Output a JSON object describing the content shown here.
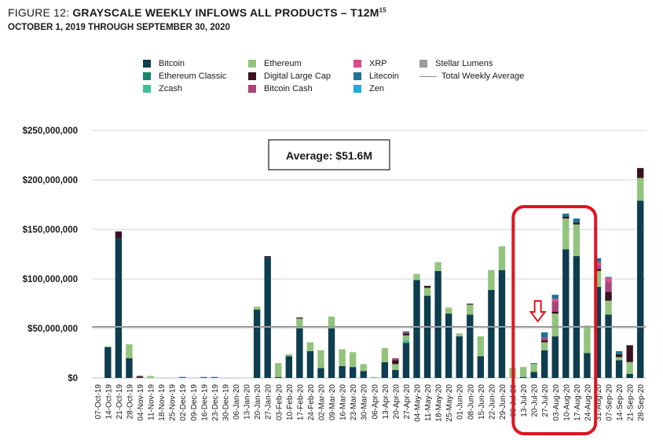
{
  "header": {
    "figure_label": "FIGURE 12:",
    "title": "GRAYSCALE WEEKLY INFLOWS ALL PRODUCTS – T12M",
    "title_sup": "15",
    "subtitle": "OCTOBER 1, 2019 THROUGH SEPTEMBER 30, 2020"
  },
  "legend": [
    {
      "name": "Bitcoin",
      "color": "#0d3d4f"
    },
    {
      "name": "Ethereum Classic",
      "color": "#14836e"
    },
    {
      "name": "Zcash",
      "color": "#3dbd97"
    },
    {
      "name": "Ethereum",
      "color": "#93c47d"
    },
    {
      "name": "Digital Large Cap",
      "color": "#3b1121"
    },
    {
      "name": "Bitcoin Cash",
      "color": "#a8457d"
    },
    {
      "name": "XRP",
      "color": "#dd4a8c"
    },
    {
      "name": "Litecoin",
      "color": "#1d7396"
    },
    {
      "name": "Zen",
      "color": "#1faed6"
    },
    {
      "name": "Stellar Lumens",
      "color": "#9b9b9b"
    },
    {
      "name": "Total Weekly Average",
      "color": "#9b9b9b"
    }
  ],
  "average_label": "Average: $51.6M",
  "chart_data": {
    "type": "bar",
    "stacked": true,
    "title": "GRAYSCALE WEEKLY INFLOWS ALL PRODUCTS – T12M",
    "ylim": [
      0,
      250000000
    ],
    "yticks": [
      0,
      50000000,
      100000000,
      150000000,
      200000000,
      250000000
    ],
    "ytick_labels": [
      "$0",
      "$50,000,000",
      "$100,000,000",
      "$150,000,000",
      "$200,000,000",
      "$250,000,000"
    ],
    "average": 51600000,
    "average_label": "Average: $51.6M",
    "categories": [
      "07-Oct-19",
      "14-Oct-19",
      "21-Oct-19",
      "28-Oct-19",
      "04-Nov-19",
      "11-Nov-19",
      "18-Nov-19",
      "25-Nov-19",
      "02-Dec-19",
      "09-Dec-19",
      "16-Dec-19",
      "23-Dec-19",
      "30-Dec-19",
      "06-Jan-20",
      "13-Jan-20",
      "20-Jan-20",
      "27-Jan-20",
      "03-Feb-20",
      "10-Feb-20",
      "17-Feb-20",
      "24-Feb-20",
      "02-Mar-20",
      "09-Mar-20",
      "16-Mar-20",
      "23-Mar-20",
      "30-Mar-20",
      "06-Apr-20",
      "13-Apr-20",
      "20-Apr-20",
      "27-Apr-20",
      "04-May-20",
      "11-May-20",
      "18-May-20",
      "25-May-20",
      "01-Jun-20",
      "08-Jun-20",
      "15-Jun-20",
      "22-Jun-20",
      "29-Jun-20",
      "06-Jul-20",
      "13-Jul-20",
      "20-Jul-20",
      "27-Jul-20",
      "03-Aug-20",
      "10-Aug-20",
      "17-Aug-20",
      "24-Aug-20",
      "31-Aug-20",
      "07-Sep-20",
      "14-Sep-20",
      "21-Sep-20",
      "28-Sep-20"
    ],
    "series": [
      {
        "name": "Bitcoin",
        "values": [
          0,
          31000000,
          141000000,
          20000000,
          1000000,
          0,
          0,
          0,
          0,
          0,
          0,
          0,
          0,
          0,
          0,
          69000000,
          122000000,
          1000000,
          22000000,
          50000000,
          27000000,
          10000000,
          50000000,
          12000000,
          11000000,
          7000000,
          0,
          16000000,
          8000000,
          35000000,
          99000000,
          83000000,
          108000000,
          65000000,
          42000000,
          64000000,
          22000000,
          89000000,
          109000000,
          0,
          1000000,
          6000000,
          28000000,
          42000000,
          130000000,
          123000000,
          25000000,
          92000000,
          64000000,
          18000000,
          4000000,
          179000000
        ]
      },
      {
        "name": "Ethereum Classic",
        "values": [
          0,
          0,
          0,
          0,
          0,
          0,
          0,
          0,
          0,
          0,
          0,
          0,
          0,
          0,
          0,
          0,
          0,
          0,
          0,
          0,
          0,
          0,
          0,
          0,
          0,
          0,
          0,
          0,
          0,
          1000000,
          0,
          0,
          0,
          0,
          0,
          0,
          0,
          0,
          0,
          0,
          0,
          0,
          0,
          0,
          0,
          0,
          0,
          0,
          0,
          0,
          0,
          0
        ]
      },
      {
        "name": "Zcash",
        "values": [
          0,
          0,
          0,
          0,
          0,
          0,
          0,
          0,
          0,
          0,
          0,
          0,
          0,
          0,
          0,
          0,
          0,
          0,
          0,
          0,
          0,
          0,
          0,
          0,
          0,
          0,
          0,
          0,
          0,
          2000000,
          0,
          0,
          0,
          0,
          0,
          0,
          0,
          0,
          0,
          0,
          0,
          0,
          0,
          0,
          0,
          0,
          0,
          0,
          0,
          0,
          0,
          0
        ]
      },
      {
        "name": "Ethereum",
        "values": [
          0,
          1000000,
          0,
          14000000,
          0,
          2000000,
          0,
          0,
          0,
          0,
          0,
          0,
          0,
          0,
          0,
          3000000,
          0,
          14000000,
          2000000,
          10000000,
          9000000,
          18000000,
          12000000,
          17000000,
          15000000,
          7000000,
          1000000,
          14000000,
          6000000,
          5000000,
          6000000,
          8000000,
          9000000,
          6000000,
          3000000,
          10000000,
          20000000,
          20000000,
          24000000,
          10000000,
          10000000,
          8000000,
          8000000,
          23000000,
          31000000,
          32000000,
          28000000,
          16000000,
          14000000,
          3000000,
          12000000,
          23000000
        ]
      },
      {
        "name": "Digital Large Cap",
        "values": [
          0,
          0,
          7000000,
          0,
          1000000,
          0,
          0,
          0,
          0,
          0,
          0,
          0,
          0,
          0,
          0,
          0,
          1000000,
          0,
          0,
          1000000,
          0,
          0,
          0,
          0,
          0,
          0,
          0,
          0,
          4000000,
          2000000,
          0,
          2000000,
          0,
          0,
          0,
          1000000,
          0,
          0,
          0,
          0,
          0,
          0,
          2000000,
          2000000,
          2000000,
          2000000,
          0,
          2000000,
          9000000,
          3000000,
          17000000,
          10000000
        ]
      },
      {
        "name": "Bitcoin Cash",
        "values": [
          0,
          0,
          0,
          0,
          0,
          0,
          0,
          0,
          0,
          0,
          0,
          0,
          0,
          0,
          0,
          0,
          0,
          0,
          0,
          0,
          0,
          0,
          0,
          0,
          0,
          0,
          0,
          0,
          2000000,
          1000000,
          0,
          0,
          0,
          0,
          0,
          0,
          0,
          0,
          0,
          0,
          0,
          0,
          3000000,
          10000000,
          0,
          0,
          0,
          4000000,
          10000000,
          0,
          0,
          0
        ]
      },
      {
        "name": "XRP",
        "values": [
          0,
          0,
          0,
          0,
          0,
          0,
          0,
          0,
          0,
          0,
          0,
          0,
          0,
          0,
          0,
          0,
          0,
          0,
          0,
          0,
          0,
          0,
          0,
          0,
          0,
          0,
          0,
          0,
          0,
          0,
          0,
          0,
          0,
          0,
          0,
          0,
          0,
          0,
          0,
          0,
          0,
          0,
          0,
          3000000,
          0,
          0,
          0,
          3000000,
          4000000,
          0,
          0,
          0
        ]
      },
      {
        "name": "Litecoin",
        "values": [
          0,
          0,
          0,
          0,
          0,
          0,
          0,
          0,
          1000000,
          0,
          1000000,
          1000000,
          0,
          0,
          0,
          0,
          0,
          0,
          0,
          0,
          0,
          0,
          0,
          0,
          0,
          0,
          0,
          0,
          0,
          1000000,
          0,
          0,
          0,
          0,
          0,
          0,
          0,
          0,
          0,
          0,
          0,
          1000000,
          5000000,
          4000000,
          3000000,
          4000000,
          0,
          4000000,
          1000000,
          3000000,
          0,
          0
        ]
      },
      {
        "name": "Zen",
        "values": [
          0,
          0,
          0,
          0,
          0,
          0,
          0,
          0,
          0,
          0,
          0,
          0,
          0,
          0,
          0,
          0,
          0,
          0,
          0,
          0,
          0,
          0,
          0,
          0,
          0,
          0,
          0,
          0,
          0,
          0,
          0,
          0,
          0,
          0,
          0,
          0,
          0,
          0,
          0,
          0,
          0,
          0,
          0,
          0,
          0,
          0,
          0,
          0,
          0,
          0,
          0,
          0
        ]
      },
      {
        "name": "Stellar Lumens",
        "values": [
          0,
          0,
          0,
          0,
          0,
          0,
          0,
          0,
          0,
          0,
          0,
          0,
          0,
          0,
          0,
          0,
          0,
          0,
          0,
          0,
          0,
          0,
          0,
          0,
          0,
          0,
          0,
          0,
          0,
          0,
          0,
          0,
          0,
          0,
          0,
          0,
          0,
          0,
          0,
          0,
          0,
          0,
          0,
          0,
          0,
          0,
          0,
          0,
          0,
          0,
          0,
          0
        ]
      }
    ],
    "highlight": {
      "from": "13-Jul-20",
      "to": "24-Aug-20"
    },
    "arrow_at": "20-Jul-20"
  }
}
